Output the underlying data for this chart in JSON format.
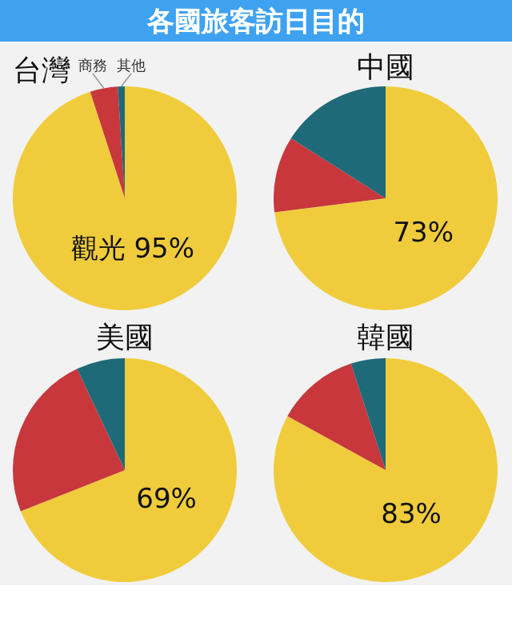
{
  "chart_data": [
    {
      "type": "other",
      "title": "各國旅客訪日目的"
    },
    {
      "type": "pie",
      "title": "台灣",
      "categories": [
        "觀光",
        "商務",
        "其他"
      ],
      "values": [
        95,
        4,
        1
      ],
      "colors": [
        "#f0cc3c",
        "#c8373c",
        "#1e6a78"
      ],
      "value_labels": [
        "95%",
        null,
        null
      ]
    },
    {
      "type": "pie",
      "title": "中國",
      "categories": [
        null,
        null,
        null
      ],
      "values": [
        73,
        11,
        16
      ],
      "colors": [
        "#f0cc3c",
        "#c8373c",
        "#1e6a78"
      ],
      "value_labels": [
        "73%",
        null,
        null
      ]
    },
    {
      "type": "pie",
      "title": "美國",
      "categories": [
        null,
        null,
        null
      ],
      "values": [
        69,
        24,
        7
      ],
      "colors": [
        "#f0cc3c",
        "#c8373c",
        "#1e6a78"
      ],
      "value_labels": [
        "69%",
        null,
        null
      ]
    },
    {
      "type": "pie",
      "title": "韓國",
      "categories": [
        null,
        null,
        null
      ],
      "values": [
        83,
        12,
        5
      ],
      "colors": [
        "#f0cc3c",
        "#c8373c",
        "#1e6a78"
      ],
      "value_labels": [
        "83%",
        null,
        null
      ]
    }
  ]
}
